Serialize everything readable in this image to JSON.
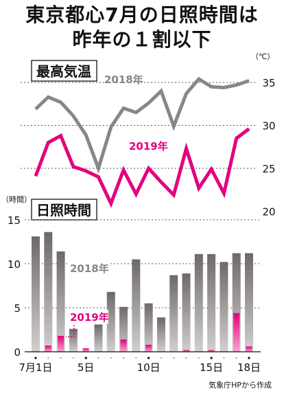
{
  "title_line_1": "東京都心7月の日照時間は",
  "title_line_2": "昨年の１割以下",
  "source": "気象庁HPから作成",
  "colors": {
    "y2018": "#8a8586",
    "y2019": "#e4007f"
  },
  "chart_data": [
    {
      "type": "line",
      "title": "最高気温",
      "unit_label": "（℃）",
      "ylim": [
        19,
        37
      ],
      "yticks": [
        20,
        25,
        30,
        35
      ],
      "x": [
        1,
        2,
        3,
        4,
        5,
        6,
        7,
        8,
        9,
        10,
        11,
        12,
        13,
        14,
        15,
        16,
        17,
        18
      ],
      "series": [
        {
          "name": "2018年",
          "color": "#8a8586",
          "values": [
            31.9,
            33.3,
            32.7,
            31.1,
            28.9,
            25.0,
            29.8,
            32.0,
            31.5,
            32.6,
            34.0,
            29.9,
            33.7,
            35.4,
            34.5,
            34.4,
            34.7,
            35.2
          ]
        },
        {
          "name": "2019年",
          "color": "#e4007f",
          "values": [
            24.1,
            28.0,
            28.8,
            25.2,
            24.7,
            24.0,
            20.9,
            24.8,
            22.0,
            25.0,
            23.4,
            21.9,
            27.3,
            22.7,
            24.9,
            22.1,
            28.5,
            29.6
          ]
        }
      ]
    },
    {
      "type": "bar",
      "title": "日照時間",
      "unit_label": "（時間）",
      "ylim": [
        0,
        16
      ],
      "yticks": [
        0,
        5,
        10,
        15
      ],
      "x": [
        1,
        2,
        3,
        4,
        5,
        6,
        7,
        8,
        9,
        10,
        11,
        12,
        13,
        14,
        15,
        16,
        17,
        18
      ],
      "xtick_labels": [
        {
          "x": 1,
          "label": "7月1日"
        },
        {
          "x": 5,
          "label": "5日"
        },
        {
          "x": 10,
          "label": "10日"
        },
        {
          "x": 15,
          "label": "15日"
        },
        {
          "x": 18,
          "label": "18日"
        }
      ],
      "series": [
        {
          "name": "2018年",
          "color": "#8a8586",
          "values": [
            13.1,
            13.6,
            11.4,
            2.6,
            0,
            3.1,
            6.8,
            5.1,
            10.5,
            5.5,
            3.9,
            8.7,
            8.9,
            11.1,
            11.1,
            10.2,
            11.2,
            11.2
          ]
        },
        {
          "name": "2019年",
          "color": "#e4007f",
          "values": [
            0,
            0.7,
            1.8,
            0,
            0.4,
            0,
            0,
            1.4,
            0,
            0.8,
            0,
            0,
            0.2,
            0,
            0.2,
            0,
            4.4,
            0.6
          ]
        }
      ]
    }
  ]
}
